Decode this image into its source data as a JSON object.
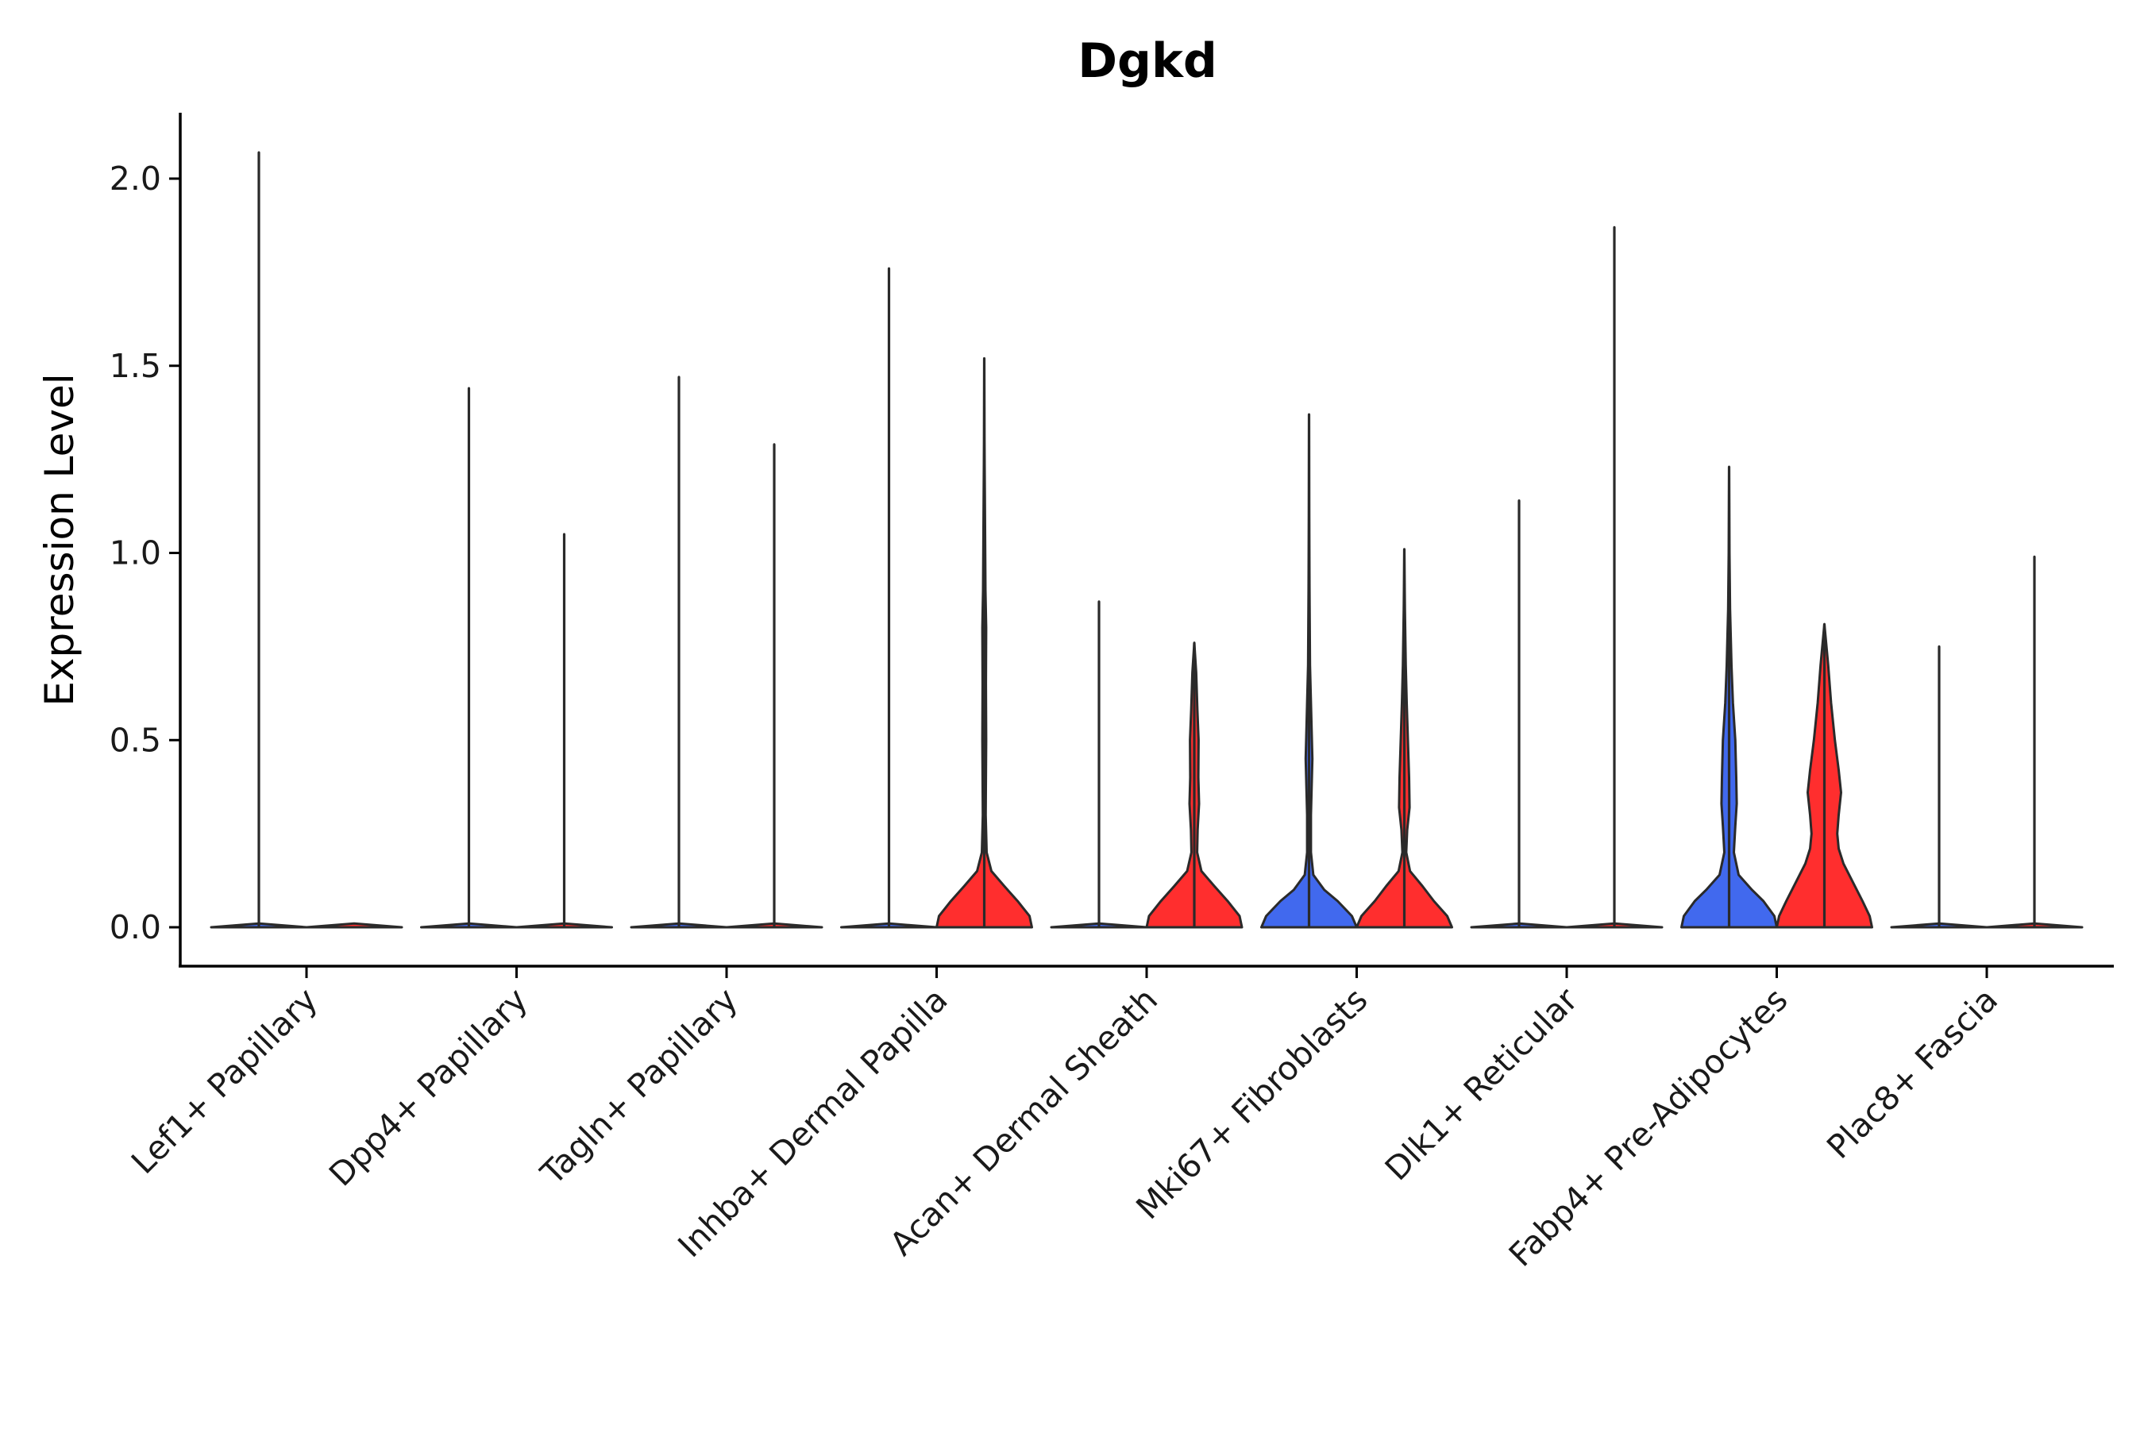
{
  "chart_data": {
    "type": "violin",
    "title": "Dgkd",
    "xlabel": "",
    "ylabel": "Expression Level",
    "ylim": [
      -0.1,
      2.18
    ],
    "yticks": [
      0.0,
      0.5,
      1.0,
      1.5,
      2.0
    ],
    "ytick_labels": [
      "0.0",
      "0.5",
      "1.0",
      "1.5",
      "2.0"
    ],
    "categories": [
      "Lef1+ Papillary",
      "Dpp4+ Papillary",
      "Tagln+ Papillary",
      "Inhba+ Dermal Papilla",
      "Acan+ Dermal Sheath",
      "Mki67+ Fibroblasts",
      "Dlk1+ Reticular",
      "Fabp4+ Pre-Adipocytes",
      "Plac8+ Fascia"
    ],
    "colors": {
      "blue": "#4169ee",
      "red": "#ff2e2e",
      "outline": "#2a2a2a"
    },
    "violins": [
      {
        "category": 0,
        "side": "left",
        "max": 2.07,
        "color": "#4169ee",
        "profile": [
          [
            0,
            1.0
          ],
          [
            0.01,
            0.0
          ],
          [
            2.07,
            0.0
          ]
        ]
      },
      {
        "category": 0,
        "side": "right",
        "max": 0.0,
        "color": "#ff2e2e",
        "profile": [
          [
            0,
            1.0
          ],
          [
            0.01,
            0.0
          ]
        ]
      },
      {
        "category": 1,
        "side": "left",
        "max": 1.44,
        "color": "#4169ee",
        "profile": [
          [
            0,
            1.0
          ],
          [
            0.01,
            0.0
          ],
          [
            1.44,
            0.0
          ]
        ]
      },
      {
        "category": 1,
        "side": "right",
        "max": 1.05,
        "color": "#ff2e2e",
        "profile": [
          [
            0,
            1.0
          ],
          [
            0.01,
            0.0
          ],
          [
            1.05,
            0.0
          ]
        ]
      },
      {
        "category": 2,
        "side": "left",
        "max": 1.47,
        "color": "#4169ee",
        "profile": [
          [
            0,
            1.0
          ],
          [
            0.01,
            0.0
          ],
          [
            1.47,
            0.0
          ]
        ]
      },
      {
        "category": 2,
        "side": "right",
        "max": 1.29,
        "color": "#ff2e2e",
        "profile": [
          [
            0,
            1.0
          ],
          [
            0.01,
            0.0
          ],
          [
            1.29,
            0.0
          ]
        ]
      },
      {
        "category": 3,
        "side": "left",
        "max": 1.76,
        "color": "#4169ee",
        "profile": [
          [
            0,
            1.0
          ],
          [
            0.01,
            0.0
          ],
          [
            1.76,
            0.0
          ]
        ]
      },
      {
        "category": 3,
        "side": "right",
        "max": 1.52,
        "color": "#ff2e2e",
        "profile": [
          [
            0,
            1.0
          ],
          [
            0.03,
            0.95
          ],
          [
            0.07,
            0.7
          ],
          [
            0.11,
            0.42
          ],
          [
            0.15,
            0.15
          ],
          [
            0.2,
            0.05
          ],
          [
            0.3,
            0.03
          ],
          [
            0.5,
            0.04
          ],
          [
            0.65,
            0.035
          ],
          [
            0.8,
            0.04
          ],
          [
            0.9,
            0.025
          ],
          [
            1.1,
            0.015
          ],
          [
            1.3,
            0.005
          ],
          [
            1.52,
            0.0
          ]
        ]
      },
      {
        "category": 4,
        "side": "left",
        "max": 0.87,
        "color": "#4169ee",
        "profile": [
          [
            0,
            1.0
          ],
          [
            0.01,
            0.0
          ],
          [
            0.87,
            0.0
          ]
        ]
      },
      {
        "category": 4,
        "side": "right",
        "max": 0.76,
        "color": "#ff2e2e",
        "profile": [
          [
            0,
            1.0
          ],
          [
            0.03,
            0.95
          ],
          [
            0.07,
            0.7
          ],
          [
            0.11,
            0.42
          ],
          [
            0.15,
            0.15
          ],
          [
            0.2,
            0.06
          ],
          [
            0.26,
            0.07
          ],
          [
            0.33,
            0.1
          ],
          [
            0.4,
            0.085
          ],
          [
            0.5,
            0.09
          ],
          [
            0.58,
            0.065
          ],
          [
            0.68,
            0.04
          ],
          [
            0.76,
            0.0
          ]
        ]
      },
      {
        "category": 5,
        "side": "left",
        "max": 1.37,
        "color": "#4169ee",
        "profile": [
          [
            0,
            1.0
          ],
          [
            0.03,
            0.9
          ],
          [
            0.07,
            0.6
          ],
          [
            0.1,
            0.32
          ],
          [
            0.14,
            0.09
          ],
          [
            0.2,
            0.04
          ],
          [
            0.3,
            0.04
          ],
          [
            0.45,
            0.07
          ],
          [
            0.55,
            0.05
          ],
          [
            0.7,
            0.02
          ],
          [
            0.9,
            0.01
          ],
          [
            1.1,
            0.004
          ],
          [
            1.37,
            0.0
          ]
        ]
      },
      {
        "category": 5,
        "side": "right",
        "max": 1.01,
        "color": "#ff2e2e",
        "profile": [
          [
            0,
            1.0
          ],
          [
            0.03,
            0.9
          ],
          [
            0.07,
            0.62
          ],
          [
            0.11,
            0.38
          ],
          [
            0.15,
            0.12
          ],
          [
            0.2,
            0.04
          ],
          [
            0.26,
            0.06
          ],
          [
            0.32,
            0.11
          ],
          [
            0.4,
            0.1
          ],
          [
            0.48,
            0.08
          ],
          [
            0.6,
            0.05
          ],
          [
            0.7,
            0.03
          ],
          [
            0.85,
            0.012
          ],
          [
            1.01,
            0.0
          ]
        ]
      },
      {
        "category": 6,
        "side": "left",
        "max": 1.14,
        "color": "#4169ee",
        "profile": [
          [
            0,
            1.0
          ],
          [
            0.01,
            0.0
          ],
          [
            1.14,
            0.0
          ]
        ]
      },
      {
        "category": 6,
        "side": "right",
        "max": 1.87,
        "color": "#ff2e2e",
        "profile": [
          [
            0,
            1.0
          ],
          [
            0.01,
            0.0
          ],
          [
            1.87,
            0.0
          ]
        ]
      },
      {
        "category": 7,
        "side": "left",
        "max": 1.23,
        "color": "#4169ee",
        "profile": [
          [
            0,
            1.0
          ],
          [
            0.03,
            0.95
          ],
          [
            0.07,
            0.72
          ],
          [
            0.1,
            0.48
          ],
          [
            0.14,
            0.2
          ],
          [
            0.2,
            0.1
          ],
          [
            0.27,
            0.13
          ],
          [
            0.33,
            0.16
          ],
          [
            0.4,
            0.15
          ],
          [
            0.5,
            0.13
          ],
          [
            0.6,
            0.08
          ],
          [
            0.7,
            0.05
          ],
          [
            0.85,
            0.02
          ],
          [
            1.0,
            0.008
          ],
          [
            1.23,
            0.0
          ]
        ]
      },
      {
        "category": 7,
        "side": "right",
        "max": 0.81,
        "color": "#ff2e2e",
        "profile": [
          [
            0,
            1.0
          ],
          [
            0.03,
            0.95
          ],
          [
            0.07,
            0.8
          ],
          [
            0.12,
            0.6
          ],
          [
            0.17,
            0.4
          ],
          [
            0.21,
            0.3
          ],
          [
            0.25,
            0.27
          ],
          [
            0.3,
            0.3
          ],
          [
            0.36,
            0.35
          ],
          [
            0.42,
            0.3
          ],
          [
            0.5,
            0.22
          ],
          [
            0.6,
            0.14
          ],
          [
            0.7,
            0.08
          ],
          [
            0.81,
            0.0
          ]
        ]
      },
      {
        "category": 8,
        "side": "left",
        "max": 0.75,
        "color": "#4169ee",
        "profile": [
          [
            0,
            1.0
          ],
          [
            0.01,
            0.0
          ],
          [
            0.75,
            0.0
          ]
        ]
      },
      {
        "category": 8,
        "side": "right",
        "max": 0.99,
        "color": "#ff2e2e",
        "profile": [
          [
            0,
            1.0
          ],
          [
            0.01,
            0.0
          ],
          [
            0.99,
            0.0
          ]
        ]
      }
    ]
  }
}
